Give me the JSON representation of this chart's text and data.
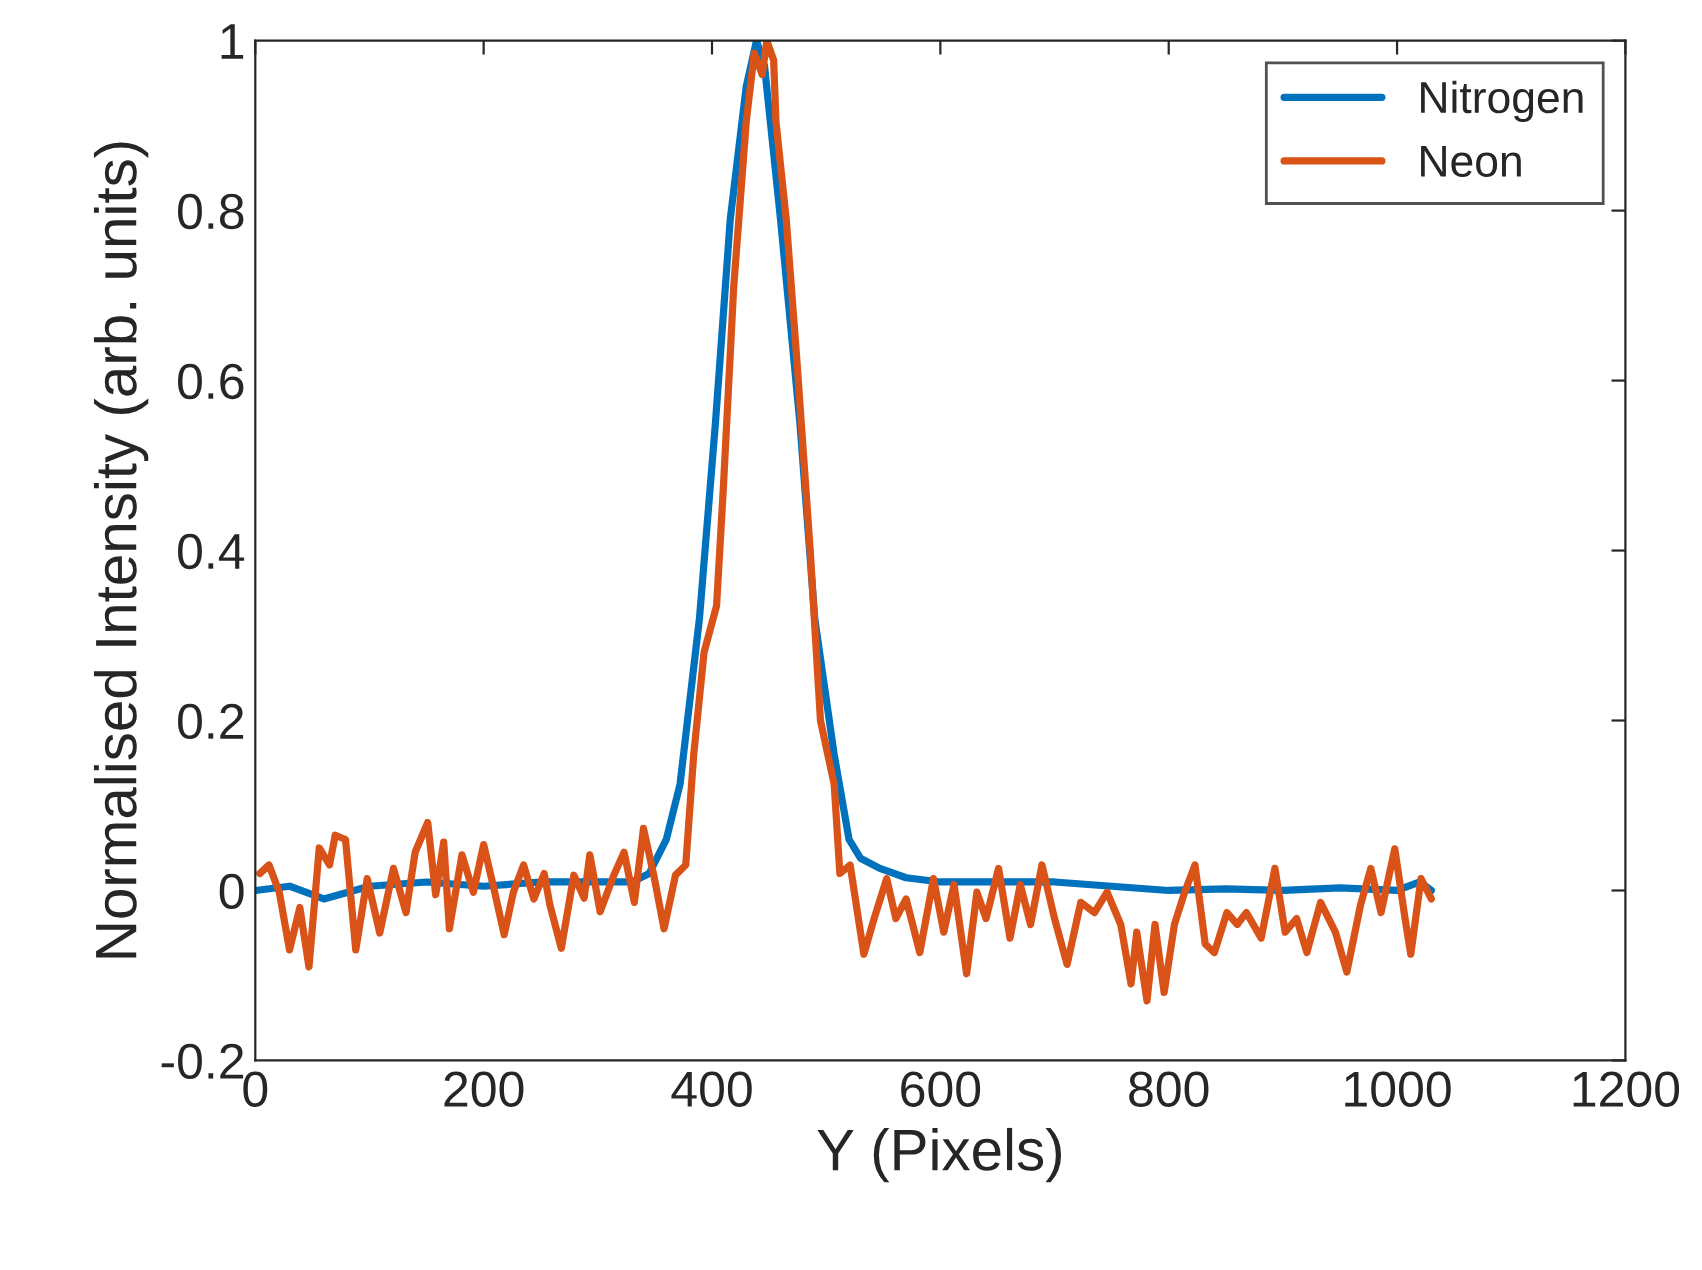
{
  "chart_data": {
    "type": "line",
    "xlabel": "Y (Pixels)",
    "ylabel": "Normalised Intensity (arb. units)",
    "xlim": [
      0,
      1200
    ],
    "xticks": [
      0,
      200,
      400,
      600,
      800,
      1000,
      1200
    ],
    "ylim": [
      -0.2,
      1
    ],
    "yticks": [
      {
        "value": -0.2,
        "label": "-0.2"
      },
      0,
      {
        "value": 0.2,
        "label": "0.2"
      },
      {
        "value": 0.4,
        "label": "0.4"
      },
      {
        "value": 0.6,
        "label": "0.6"
      },
      {
        "value": 0.8,
        "label": "0.8"
      },
      1
    ],
    "grid": false,
    "legend": "top right",
    "marker": "none",
    "line_style": "solid",
    "series": [
      {
        "name": "Nitrogen",
        "color": "#0072bd",
        "x": [
          0,
          30,
          60,
          100,
          150,
          200,
          250,
          300,
          330,
          345,
          360,
          372,
          389,
          403,
          416,
          430,
          439,
          446,
          460,
          477,
          490,
          507,
          520,
          530,
          547,
          570,
          600,
          650,
          700,
          750,
          800,
          850,
          900,
          950,
          1000,
          1020,
          1030
        ],
        "values": [
          0,
          0.005,
          -0.01,
          0.005,
          0.01,
          0.005,
          0.01,
          0.01,
          0.01,
          0.02,
          0.06,
          0.125,
          0.32,
          0.55,
          0.79,
          0.946,
          1.0,
          0.97,
          0.79,
          0.55,
          0.32,
          0.16,
          0.06,
          0.038,
          0.026,
          0.015,
          0.01,
          0.01,
          0.01,
          0.005,
          0,
          0.002,
          0,
          0.003,
          0,
          0.01,
          0
        ]
      },
      {
        "name": "Neon",
        "color": "#d95319",
        "x": [
          4,
          12,
          21,
          30,
          39,
          47,
          56,
          65,
          70,
          79,
          88,
          98,
          109,
          121,
          132,
          140,
          151,
          158,
          165,
          170,
          181,
          191,
          200,
          209,
          218,
          226,
          235,
          244,
          253,
          258,
          268,
          279,
          288,
          293,
          302,
          314,
          323,
          332,
          340,
          349,
          358,
          368,
          377,
          384,
          393,
          404,
          410,
          419,
          430,
          437,
          444,
          448,
          454,
          456,
          465,
          474,
          486,
          495,
          507,
          512,
          521,
          533,
          542,
          553,
          561,
          570,
          582,
          594,
          603,
          612,
          623,
          632,
          640,
          651,
          661,
          670,
          679,
          689,
          700,
          711,
          723,
          735,
          746,
          758,
          767,
          772,
          781,
          788,
          796,
          805,
          814,
          823,
          832,
          840,
          851,
          860,
          868,
          881,
          893,
          902,
          912,
          921,
          933,
          946,
          956,
          968,
          977,
          986,
          998,
          1007,
          1012,
          1021,
          1030
        ],
        "values": [
          0.02,
          0.03,
          -0.002,
          -0.07,
          -0.02,
          -0.09,
          0.05,
          0.03,
          0.065,
          0.06,
          -0.07,
          0.014,
          -0.05,
          0.026,
          -0.026,
          0.045,
          0.08,
          -0.005,
          0.057,
          -0.045,
          0.042,
          -0.002,
          0.054,
          0.002,
          -0.052,
          -0.002,
          0.03,
          -0.01,
          0.02,
          -0.017,
          -0.068,
          0.018,
          -0.009,
          0.042,
          -0.025,
          0.018,
          0.045,
          -0.014,
          0.073,
          0.018,
          -0.045,
          0.018,
          0.03,
          0.16,
          0.28,
          0.335,
          0.475,
          0.71,
          0.905,
          0.985,
          0.96,
          1.0,
          0.977,
          0.905,
          0.79,
          0.63,
          0.4,
          0.2,
          0.125,
          0.02,
          0.03,
          -0.075,
          -0.033,
          0.014,
          -0.033,
          -0.01,
          -0.073,
          0.014,
          -0.049,
          0.007,
          -0.098,
          -0.002,
          -0.033,
          0.026,
          -0.056,
          0.007,
          -0.04,
          0.03,
          -0.033,
          -0.087,
          -0.014,
          -0.026,
          -0.002,
          -0.04,
          -0.11,
          -0.049,
          -0.13,
          -0.04,
          -0.12,
          -0.04,
          -0.002,
          0.03,
          -0.063,
          -0.073,
          -0.026,
          -0.04,
          -0.026,
          -0.056,
          0.026,
          -0.049,
          -0.033,
          -0.073,
          -0.014,
          -0.049,
          -0.096,
          -0.017,
          0.026,
          -0.026,
          0.049,
          -0.033,
          -0.075,
          0.014,
          -0.01
        ]
      }
    ]
  }
}
